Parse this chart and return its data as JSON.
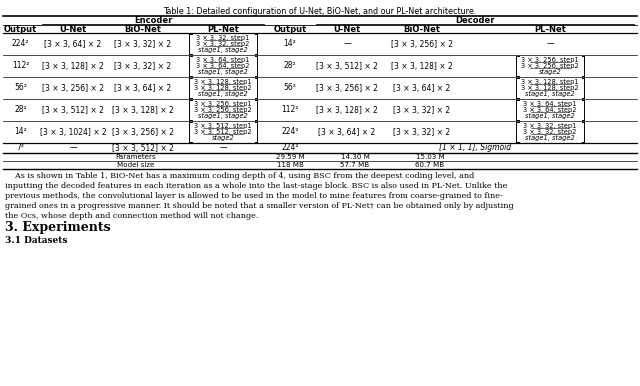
{
  "title": "Table 1: Detailed configuration of U-Net, BiO-Net, and our PL-Net architecture.",
  "enc_plnet_specs": [
    {
      "lines": [
        "3 × 3, 32, step1",
        "3 × 3, 32, step2"
      ],
      "stage": "stage1, stage2"
    },
    {
      "lines": [
        "3 × 3, 64, step1",
        "3 × 3, 64, step2"
      ],
      "stage": "stage1, stage2"
    },
    {
      "lines": [
        "3 × 3, 128, step1",
        "3 × 3, 128, step2"
      ],
      "stage": "stage1, stage2"
    },
    {
      "lines": [
        "3 × 3, 256, step1",
        "3 × 3, 256, step2"
      ],
      "stage": "stage1, stage2"
    },
    {
      "lines": [
        "3 × 3, 512, step1",
        "3 × 3, 512, step2"
      ],
      "stage": "stage2"
    }
  ],
  "dec_plnet_specs": [
    null,
    {
      "lines": [
        "3 × 3, 256, step1",
        "3 × 3, 256, step2"
      ],
      "stage": "stage2"
    },
    {
      "lines": [
        "3 × 3, 128, step1",
        "3 × 3, 128, step2"
      ],
      "stage": "stage1, stage2"
    },
    {
      "lines": [
        "3 × 3, 64, step1",
        "3 × 3, 64, step2"
      ],
      "stage": "stage1, stage2"
    },
    {
      "lines": [
        "3 × 3, 32, step1",
        "3 × 3, 32, step2"
      ],
      "stage": "stage1, stage2"
    }
  ],
  "rows": [
    {
      "enc_out": "224²",
      "enc_unet": "[3 × 3, 64] × 2",
      "enc_bio": "[3 × 3, 32] × 2",
      "dec_out": "14²",
      "dec_unet": "—",
      "dec_bio": "[3 × 3, 256] × 2",
      "dec_plnet_dash": true
    },
    {
      "enc_out": "112²",
      "enc_unet": "[3 × 3, 128] × 2",
      "enc_bio": "[3 × 3, 32] × 2",
      "dec_out": "28²",
      "dec_unet": "[3 × 3, 512] × 2",
      "dec_bio": "[3 × 3, 128] × 2",
      "dec_plnet_dash": false
    },
    {
      "enc_out": "56²",
      "enc_unet": "[3 × 3, 256] × 2",
      "enc_bio": "[3 × 3, 64] × 2",
      "dec_out": "56²",
      "dec_unet": "[3 × 3, 256] × 2",
      "dec_bio": "[3 × 3, 64] × 2",
      "dec_plnet_dash": false
    },
    {
      "enc_out": "28²",
      "enc_unet": "[3 × 3, 512] × 2",
      "enc_bio": "[3 × 3, 128] × 2",
      "dec_out": "112²",
      "dec_unet": "[3 × 3, 128] × 2",
      "dec_bio": "[3 × 3, 32] × 2",
      "dec_plnet_dash": false
    },
    {
      "enc_out": "14²",
      "enc_unet": "[3 × 3, 1024] × 2",
      "enc_bio": "[3 × 3, 256] × 2",
      "dec_out": "224²",
      "dec_unet": "[3 × 3, 64] × 2",
      "dec_bio": "[3 × 3, 32] × 2",
      "dec_plnet_dash": false
    }
  ],
  "bot_enc_out": "7²",
  "bot_enc_unet": "—",
  "bot_enc_bio": "[3 × 3, 512] × 2",
  "bot_enc_pl": "—",
  "bot_dec_out": "224²",
  "bot_sigmoid": "[1 × 1, 1], Sigmoid",
  "params": [
    "29.59 M",
    "14.30 M",
    "15.03 M"
  ],
  "modelsz": [
    "118 MB",
    "57.7 MB",
    "60.7 MB"
  ],
  "paragraph": "    As is shown in Table 1, BiO-Net has a maximum coding depth of 4, using BSC from the deepest coding level, and\ninputting the decoded features in each iteration as a whole into the last-stage block. BSC is also used in PL-Net. Unlike the\nprevious methods, the convolutional layer is allowed to be used in the model to mine features from coarse-grained to fine-\ngrained ones in a progressive manner. It should be noted that a smaller version of PL-Net† can be obtained only by adjusting\nthe Ocs, whose depth and connection method will not change.",
  "section": "3. Experiments",
  "subsection": "3.1 Datasets"
}
